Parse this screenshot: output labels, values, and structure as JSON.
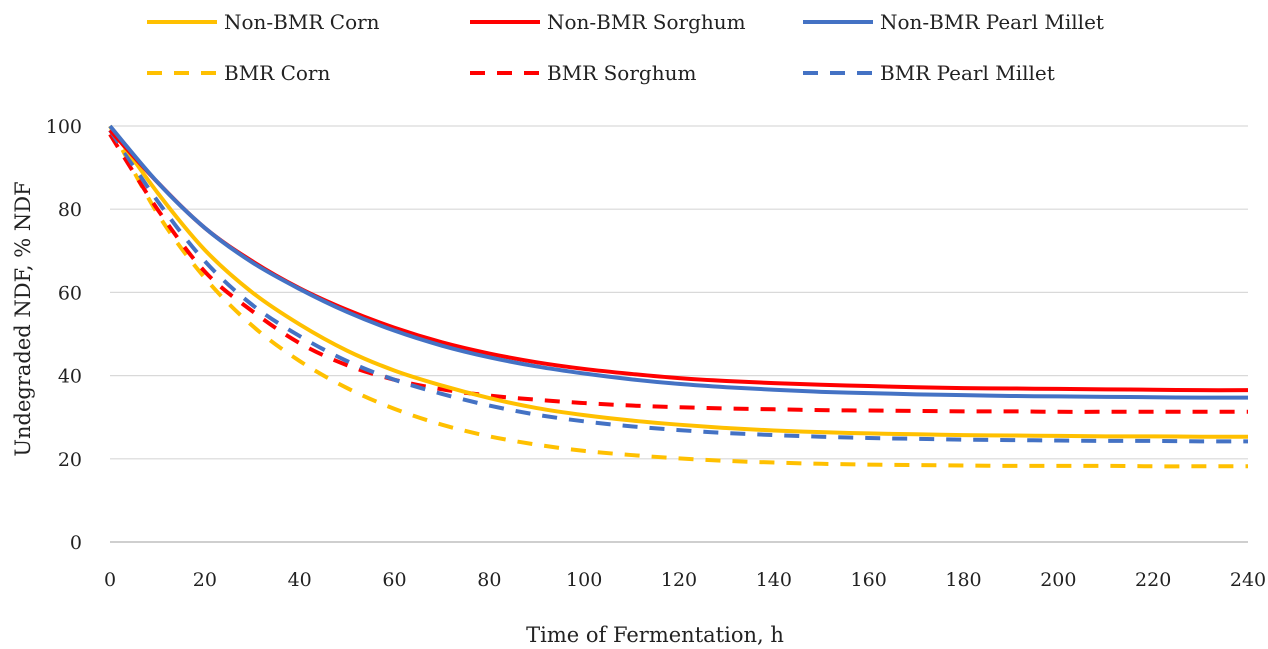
{
  "chart_data": {
    "type": "line",
    "title": "",
    "xlabel": "Time of Fermentation, h",
    "ylabel": "Undegraded NDF, % NDF",
    "xlim": [
      0,
      240
    ],
    "ylim": [
      0,
      100
    ],
    "x_ticks": [
      0,
      20,
      40,
      60,
      80,
      100,
      120,
      140,
      160,
      180,
      200,
      220,
      240
    ],
    "y_ticks": [
      0,
      20,
      40,
      60,
      80,
      100
    ],
    "grid": "horizontal",
    "legend_position": "top",
    "x": [
      0,
      10,
      20,
      30,
      40,
      50,
      60,
      70,
      80,
      90,
      100,
      110,
      120,
      130,
      140,
      150,
      160,
      170,
      180,
      190,
      200,
      210,
      220,
      230,
      240
    ],
    "series": [
      {
        "name": "Non-BMR Corn",
        "color": "#FFC000",
        "style": "solid",
        "values": [
          100,
          84,
          70.2,
          60,
          52.3,
          46,
          41.2,
          37.6,
          34.6,
          32.2,
          30.5,
          29.2,
          28.2,
          27.4,
          26.8,
          26.4,
          26.1,
          25.9,
          25.7,
          25.6,
          25.5,
          25.4,
          25.4,
          25.3,
          25.3
        ]
      },
      {
        "name": "Non-BMR Sorghum",
        "color": "#FF0000",
        "style": "solid",
        "values": [
          99,
          86.5,
          75.5,
          67.5,
          61,
          55.8,
          51.5,
          48,
          45.3,
          43.2,
          41.6,
          40.4,
          39.4,
          38.7,
          38.2,
          37.8,
          37.5,
          37.2,
          37.0,
          36.9,
          36.8,
          36.7,
          36.6,
          36.5,
          36.5
        ]
      },
      {
        "name": "Non-BMR Pearl Millet",
        "color": "#4472C4",
        "style": "solid",
        "values": [
          100,
          86.5,
          75.5,
          67.2,
          60.8,
          55.3,
          50.8,
          47.2,
          44.4,
          42.2,
          40.5,
          39.1,
          38.0,
          37.2,
          36.6,
          36.1,
          35.8,
          35.5,
          35.3,
          35.1,
          35.0,
          34.9,
          34.8,
          34.7,
          34.7
        ]
      },
      {
        "name": "BMR Corn",
        "color": "#FFC000",
        "style": "dashed",
        "values": [
          100,
          79,
          63.5,
          52,
          43.5,
          37,
          32,
          28.2,
          25.4,
          23.4,
          21.9,
          20.9,
          20.1,
          19.5,
          19.1,
          18.8,
          18.6,
          18.5,
          18.4,
          18.3,
          18.3,
          18.3,
          18.2,
          18.2,
          18.2
        ]
      },
      {
        "name": "BMR Sorghum",
        "color": "#FF0000",
        "style": "dashed",
        "values": [
          98,
          80,
          65,
          55.5,
          47.8,
          42.5,
          39,
          36.7,
          35.2,
          34.2,
          33.4,
          32.8,
          32.4,
          32.1,
          31.9,
          31.7,
          31.6,
          31.5,
          31.4,
          31.4,
          31.3,
          31.3,
          31.3,
          31.3,
          31.3
        ]
      },
      {
        "name": "BMR Pearl Millet",
        "color": "#4472C4",
        "style": "dashed",
        "values": [
          99,
          82,
          67.5,
          57,
          49.5,
          43.5,
          39,
          35.6,
          32.8,
          30.6,
          29.0,
          27.8,
          26.9,
          26.2,
          25.7,
          25.3,
          25.0,
          24.8,
          24.6,
          24.5,
          24.4,
          24.3,
          24.3,
          24.2,
          24.2
        ]
      }
    ]
  }
}
